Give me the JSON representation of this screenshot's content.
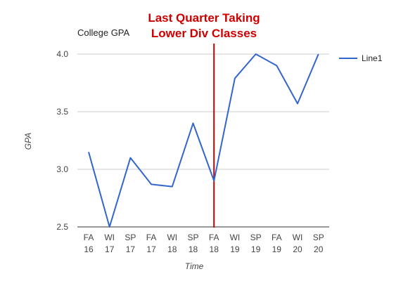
{
  "annotation": {
    "line1": "Last Quarter Taking",
    "line2": "Lower Div Classes",
    "at_category": 6,
    "color": "#cc0000"
  },
  "chart_data": {
    "type": "line",
    "title": "College GPA",
    "xlabel": "Time",
    "ylabel": "GPA",
    "categories": [
      [
        "FA",
        "16"
      ],
      [
        "WI",
        "17"
      ],
      [
        "SP",
        "17"
      ],
      [
        "FA",
        "17"
      ],
      [
        "WI",
        "18"
      ],
      [
        "SP",
        "18"
      ],
      [
        "FA",
        "18"
      ],
      [
        "WI",
        "19"
      ],
      [
        "SP",
        "19"
      ],
      [
        "FA",
        "19"
      ],
      [
        "WI",
        "20"
      ],
      [
        "SP",
        "20"
      ]
    ],
    "series": [
      {
        "name": "Line1",
        "color": "#3366cc",
        "values": [
          3.15,
          2.5,
          3.1,
          2.87,
          2.85,
          3.4,
          2.9,
          3.79,
          4.0,
          3.9,
          3.57,
          4.0
        ]
      }
    ],
    "ylim": [
      2.5,
      4.0
    ],
    "yticks": [
      2.5,
      3.0,
      3.5,
      4.0
    ],
    "ytick_labels": [
      "2.5",
      "3.0",
      "3.5",
      "4.0"
    ],
    "grid": true,
    "legend_position": "right"
  }
}
